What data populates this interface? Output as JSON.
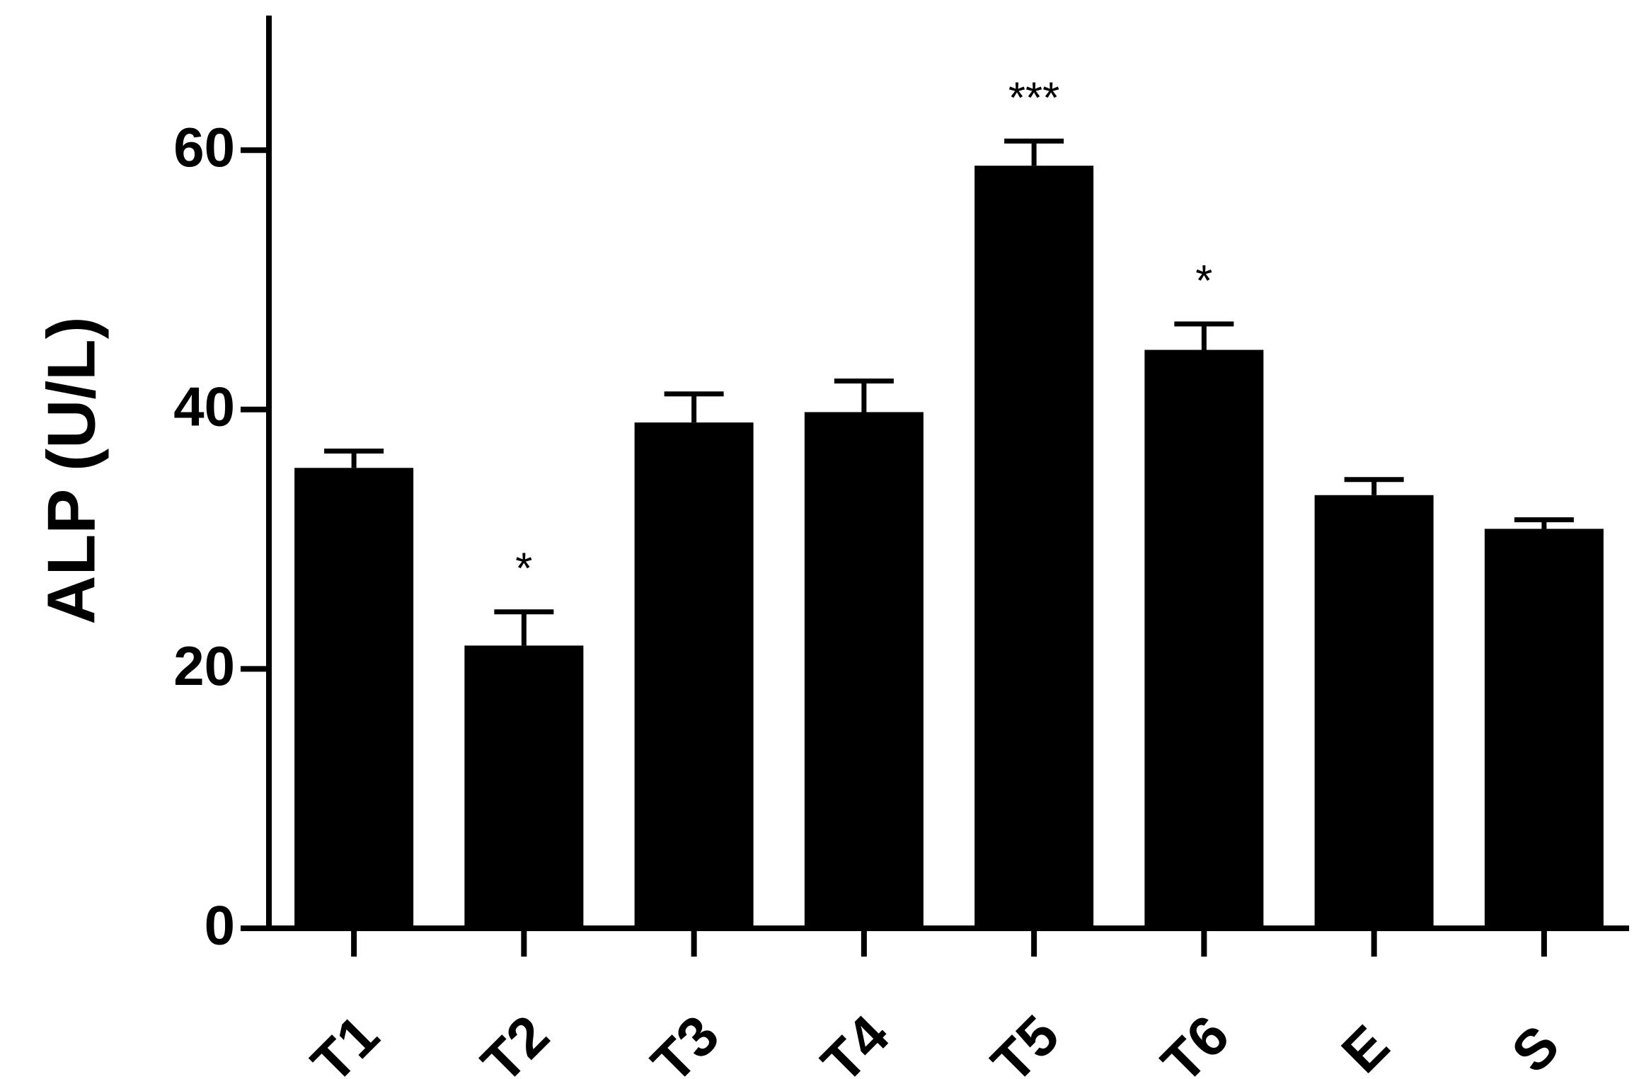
{
  "chart_data": {
    "type": "bar",
    "title": "",
    "xlabel": "",
    "ylabel": "ALP (U/L)",
    "ylim": [
      0,
      70
    ],
    "yticks": [
      0,
      20,
      40,
      60
    ],
    "grid": false,
    "legend": "none",
    "bar_color": "#000000",
    "categories": [
      "T1",
      "T2",
      "T3",
      "T4",
      "T5",
      "T6",
      "E",
      "S"
    ],
    "values": [
      35.5,
      21.8,
      39.0,
      39.8,
      58.8,
      44.6,
      33.4,
      30.8
    ],
    "errors": [
      1.3,
      2.6,
      2.2,
      2.4,
      1.9,
      2.0,
      1.2,
      0.7
    ],
    "significance": [
      "",
      "*",
      "",
      "",
      "***",
      "*",
      "",
      ""
    ]
  }
}
